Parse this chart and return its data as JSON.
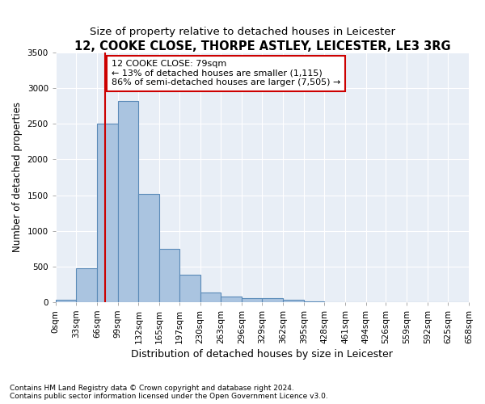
{
  "title": "12, COOKE CLOSE, THORPE ASTLEY, LEICESTER, LE3 3RG",
  "subtitle": "Size of property relative to detached houses in Leicester",
  "xlabel": "Distribution of detached houses by size in Leicester",
  "ylabel": "Number of detached properties",
  "bin_edges": [
    0,
    33,
    66,
    99,
    132,
    165,
    197,
    230,
    263,
    296,
    329,
    362,
    395,
    428,
    461,
    494,
    526,
    559,
    592,
    625,
    658
  ],
  "bar_labels": [
    "0sqm",
    "33sqm",
    "66sqm",
    "99sqm",
    "132sqm",
    "165sqm",
    "197sqm",
    "230sqm",
    "263sqm",
    "296sqm",
    "329sqm",
    "362sqm",
    "395sqm",
    "428sqm",
    "461sqm",
    "494sqm",
    "526sqm",
    "559sqm",
    "592sqm",
    "625sqm",
    "658sqm"
  ],
  "bar_heights": [
    30,
    470,
    2500,
    2820,
    1520,
    750,
    380,
    140,
    80,
    55,
    55,
    30,
    5,
    0,
    0,
    0,
    0,
    0,
    0,
    0
  ],
  "bar_color": "#aac4e0",
  "bar_edge_color": "#5a8ab8",
  "bar_edge_width": 0.8,
  "vline_x": 79,
  "vline_color": "#cc0000",
  "annotation_text": "12 COOKE CLOSE: 79sqm\n← 13% of detached houses are smaller (1,115)\n86% of semi-detached houses are larger (7,505) →",
  "annotation_box_color": "white",
  "annotation_box_edge": "#cc0000",
  "annotation_fontsize": 8,
  "ylim": [
    0,
    3500
  ],
  "yticks": [
    0,
    500,
    1000,
    1500,
    2000,
    2500,
    3000,
    3500
  ],
  "background_color": "#e8eef6",
  "grid_color": "white",
  "title_fontsize": 10.5,
  "subtitle_fontsize": 9.5,
  "xlabel_fontsize": 9,
  "ylabel_fontsize": 8.5,
  "tick_fontsize": 7.5,
  "footer_text": "Contains HM Land Registry data © Crown copyright and database right 2024.\nContains public sector information licensed under the Open Government Licence v3.0."
}
